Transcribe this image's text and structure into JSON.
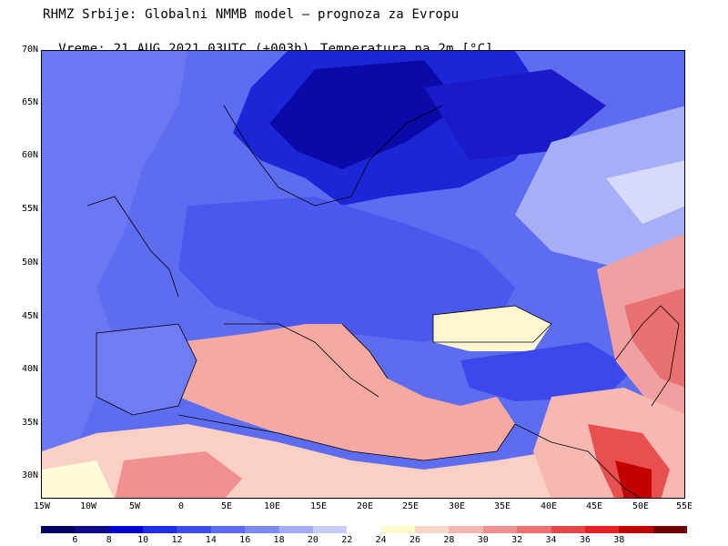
{
  "header": {
    "line1": "RHMZ Srbije: Globalni NMMB model — prognoza za Evropu",
    "line2_left": "Vreme: 21 AUG 2021 03UTC (+003h)",
    "line2_right": "Temperatura na 2m [°C]"
  },
  "axes": {
    "lat_labels": [
      "70N",
      "65N",
      "60N",
      "55N",
      "50N",
      "45N",
      "40N",
      "35N",
      "30N"
    ],
    "lon_labels": [
      "15W",
      "10W",
      "5W",
      "0",
      "5E",
      "10E",
      "15E",
      "20E",
      "25E",
      "30E",
      "35E",
      "40E",
      "45E",
      "50E",
      "55E"
    ]
  },
  "colorbar": {
    "colors": [
      "#000066",
      "#0a0a8c",
      "#0000d0",
      "#1e2ee8",
      "#3c4cf0",
      "#5c6cf2",
      "#7e8af4",
      "#a2abf6",
      "#c8ccf8",
      "#ffffff",
      "#fffac8",
      "#f8d8c8",
      "#f4b4b0",
      "#f09090",
      "#ec7070",
      "#e84848",
      "#e42020",
      "#c00000",
      "#700000"
    ],
    "labels": [
      "6",
      "8",
      "10",
      "12",
      "14",
      "16",
      "18",
      "20",
      "22",
      "24",
      "26",
      "28",
      "30",
      "32",
      "34",
      "36",
      "38"
    ]
  },
  "map": {
    "description_colors": {
      "land_cold": "#2d3ce0",
      "north_deep": "#0a0ac0",
      "mid_blue": "#5a66ef",
      "light_blue": "#a8b0f6",
      "sea_warm": "#f4a8a0",
      "hot": "#ec6a6a",
      "very_hot": "#d81818",
      "neutral": "#fffad8"
    }
  }
}
